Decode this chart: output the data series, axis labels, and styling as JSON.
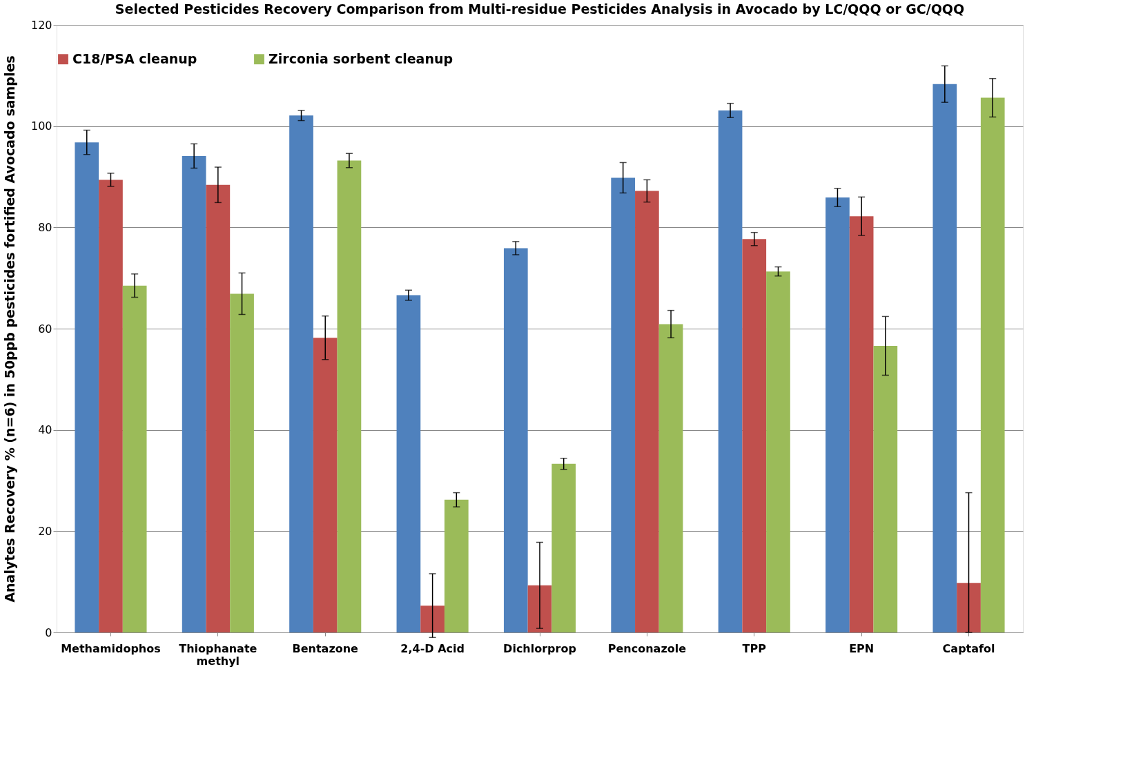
{
  "chart_data": {
    "type": "bar",
    "title": "Selected Pesticides Recovery Comparison from Multi-residue Pesticides Analysis in Avocado by LC/QQQ or GC/QQQ",
    "ylabel": "Analytes Recovery % (n=6) in 50ppb pesticides fortified Avocado samples",
    "categories": [
      "Methamidophos",
      "Thiophanate methyl",
      "Bentazone",
      "2,4-D Acid",
      "Dichlorprop",
      "Penconazole",
      "TPP",
      "EPN",
      "Captafol"
    ],
    "series": [
      {
        "color": "#4f81bd",
        "values": [
          96.8,
          94.1,
          102.1,
          66.6,
          75.9,
          89.8,
          103.1,
          85.9,
          108.3
        ],
        "errors": [
          2.4,
          2.4,
          1.0,
          1.0,
          1.3,
          3.0,
          1.4,
          1.8,
          3.6
        ]
      },
      {
        "name": "C18/PSA cleanup",
        "color": "#c0504d",
        "values": [
          89.4,
          88.4,
          58.2,
          5.3,
          9.3,
          87.2,
          77.7,
          82.2,
          9.8
        ],
        "errors": [
          1.3,
          3.5,
          4.3,
          6.3,
          8.5,
          2.2,
          1.3,
          3.8,
          [
            0,
            27.6
          ]
        ]
      },
      {
        "name": "Zirconia sorbent cleanup",
        "color": "#9bbb59",
        "values": [
          68.5,
          66.9,
          93.2,
          26.2,
          33.3,
          60.9,
          71.3,
          56.6,
          105.6
        ],
        "errors": [
          2.3,
          4.1,
          1.4,
          1.4,
          1.1,
          2.7,
          0.9,
          5.8,
          3.8
        ]
      }
    ],
    "ylim": [
      0,
      120
    ],
    "yticks": [
      0,
      20,
      40,
      60,
      80,
      100,
      120
    ],
    "grid": "y",
    "legend": "top"
  }
}
